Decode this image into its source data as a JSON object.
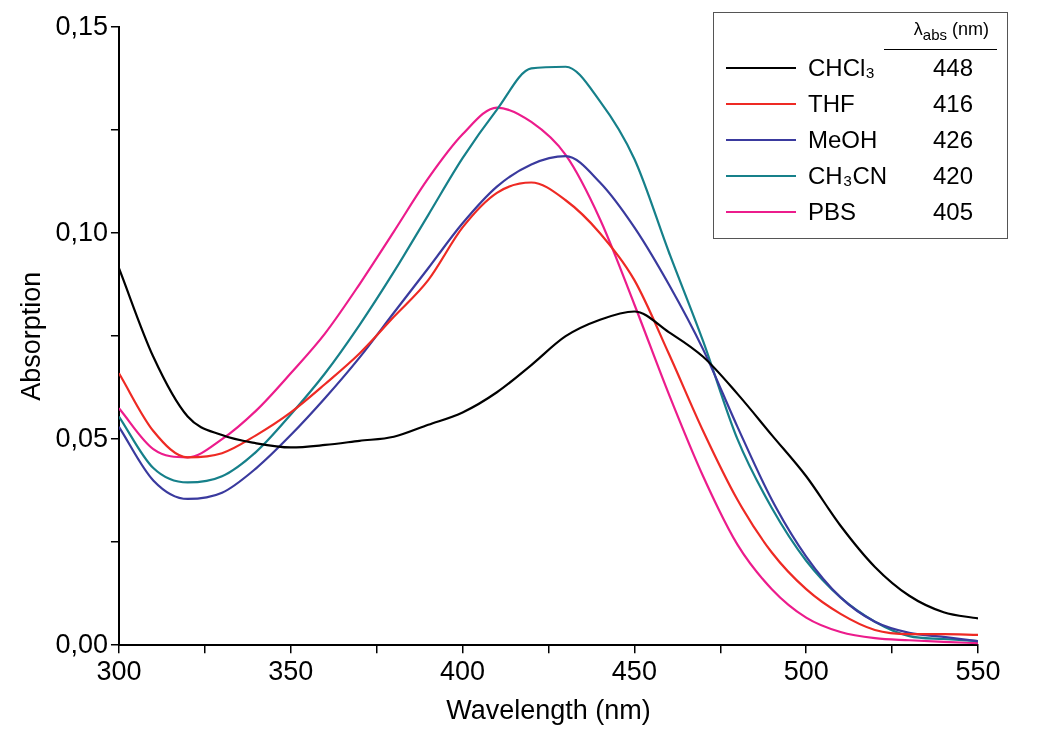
{
  "chart_data": {
    "type": "line",
    "xlabel": "Wavelength (nm)",
    "ylabel": "Absorption",
    "legend_title": "λ$_{abs}$ (nm)",
    "legend": "top right",
    "grid": false,
    "marker": "none",
    "line_style": "solid",
    "x": [
      300,
      310,
      320,
      330,
      340,
      350,
      360,
      370,
      380,
      390,
      400,
      410,
      420,
      430,
      440,
      450,
      460,
      470,
      480,
      490,
      500,
      510,
      520,
      530,
      540,
      550
    ],
    "xlim": [
      300,
      550
    ],
    "xticks": [
      300,
      {
        "value": 325,
        "label": null
      },
      350,
      {
        "value": 375,
        "label": null
      },
      400,
      {
        "value": 425,
        "label": null
      },
      450,
      {
        "value": 475,
        "label": null
      },
      500,
      {
        "value": 525,
        "label": null
      },
      550
    ],
    "ylim": [
      0,
      0.15
    ],
    "yticks": [
      {
        "value": 0,
        "label": "0,00"
      },
      {
        "value": 0.025,
        "label": null
      },
      {
        "value": 0.05,
        "label": "0,05"
      },
      {
        "value": 0.075,
        "label": null
      },
      {
        "value": 0.1,
        "label": "0,10"
      },
      {
        "value": 0.125,
        "label": null
      },
      {
        "value": 0.15,
        "label": "0,15"
      }
    ],
    "series": [
      {
        "name": "CHCl₃",
        "color": "#000000",
        "values": [
          0.0915,
          0.07,
          0.0555,
          0.051,
          0.049,
          0.048,
          0.0486,
          0.0496,
          0.0506,
          0.0535,
          0.0565,
          0.0614,
          0.068,
          0.075,
          0.079,
          0.081,
          0.076,
          0.07,
          0.061,
          0.051,
          0.041,
          0.029,
          0.019,
          0.012,
          0.008,
          0.0065
        ]
      },
      {
        "name": "THF",
        "color": "#ee2a24",
        "values": [
          0.066,
          0.052,
          0.0456,
          0.0466,
          0.051,
          0.0565,
          0.0634,
          0.0708,
          0.0797,
          0.0886,
          0.1014,
          0.1098,
          0.1123,
          0.108,
          0.1,
          0.0886,
          0.0708,
          0.052,
          0.0353,
          0.0225,
          0.0136,
          0.0076,
          0.0037,
          0.0027,
          0.0027,
          0.0025
        ]
      },
      {
        "name": "MeOH",
        "color": "#3a3a9e",
        "values": [
          0.053,
          0.04,
          0.0355,
          0.037,
          0.043,
          0.051,
          0.06,
          0.0698,
          0.0807,
          0.0915,
          0.1024,
          0.1113,
          0.1167,
          0.1187,
          0.1123,
          0.1014,
          0.0876,
          0.0718,
          0.053,
          0.0353,
          0.0215,
          0.0116,
          0.0057,
          0.003,
          0.002,
          0.001
        ]
      },
      {
        "name": "CH₃CN",
        "color": "#16808a",
        "values": [
          0.0555,
          0.043,
          0.0395,
          0.041,
          0.047,
          0.056,
          0.066,
          0.0777,
          0.0906,
          0.1044,
          0.1182,
          0.13,
          0.14,
          0.1404,
          0.132,
          0.118,
          0.0955,
          0.0738,
          0.05,
          0.0333,
          0.0205,
          0.0116,
          0.0057,
          0.0022,
          0.0015,
          0.001
        ]
      },
      {
        "name": "PBS",
        "color": "#ec1c8c",
        "values": [
          0.0575,
          0.0476,
          0.0456,
          0.05,
          0.057,
          0.066,
          0.0757,
          0.0876,
          0.1004,
          0.1133,
          0.124,
          0.1305,
          0.127,
          0.119,
          0.1034,
          0.0827,
          0.061,
          0.041,
          0.0244,
          0.0136,
          0.0067,
          0.0032,
          0.0017,
          0.0012,
          0.0008,
          0.0005
        ]
      }
    ],
    "annotations": [
      "448",
      "416",
      "426",
      "420",
      "405"
    ]
  }
}
